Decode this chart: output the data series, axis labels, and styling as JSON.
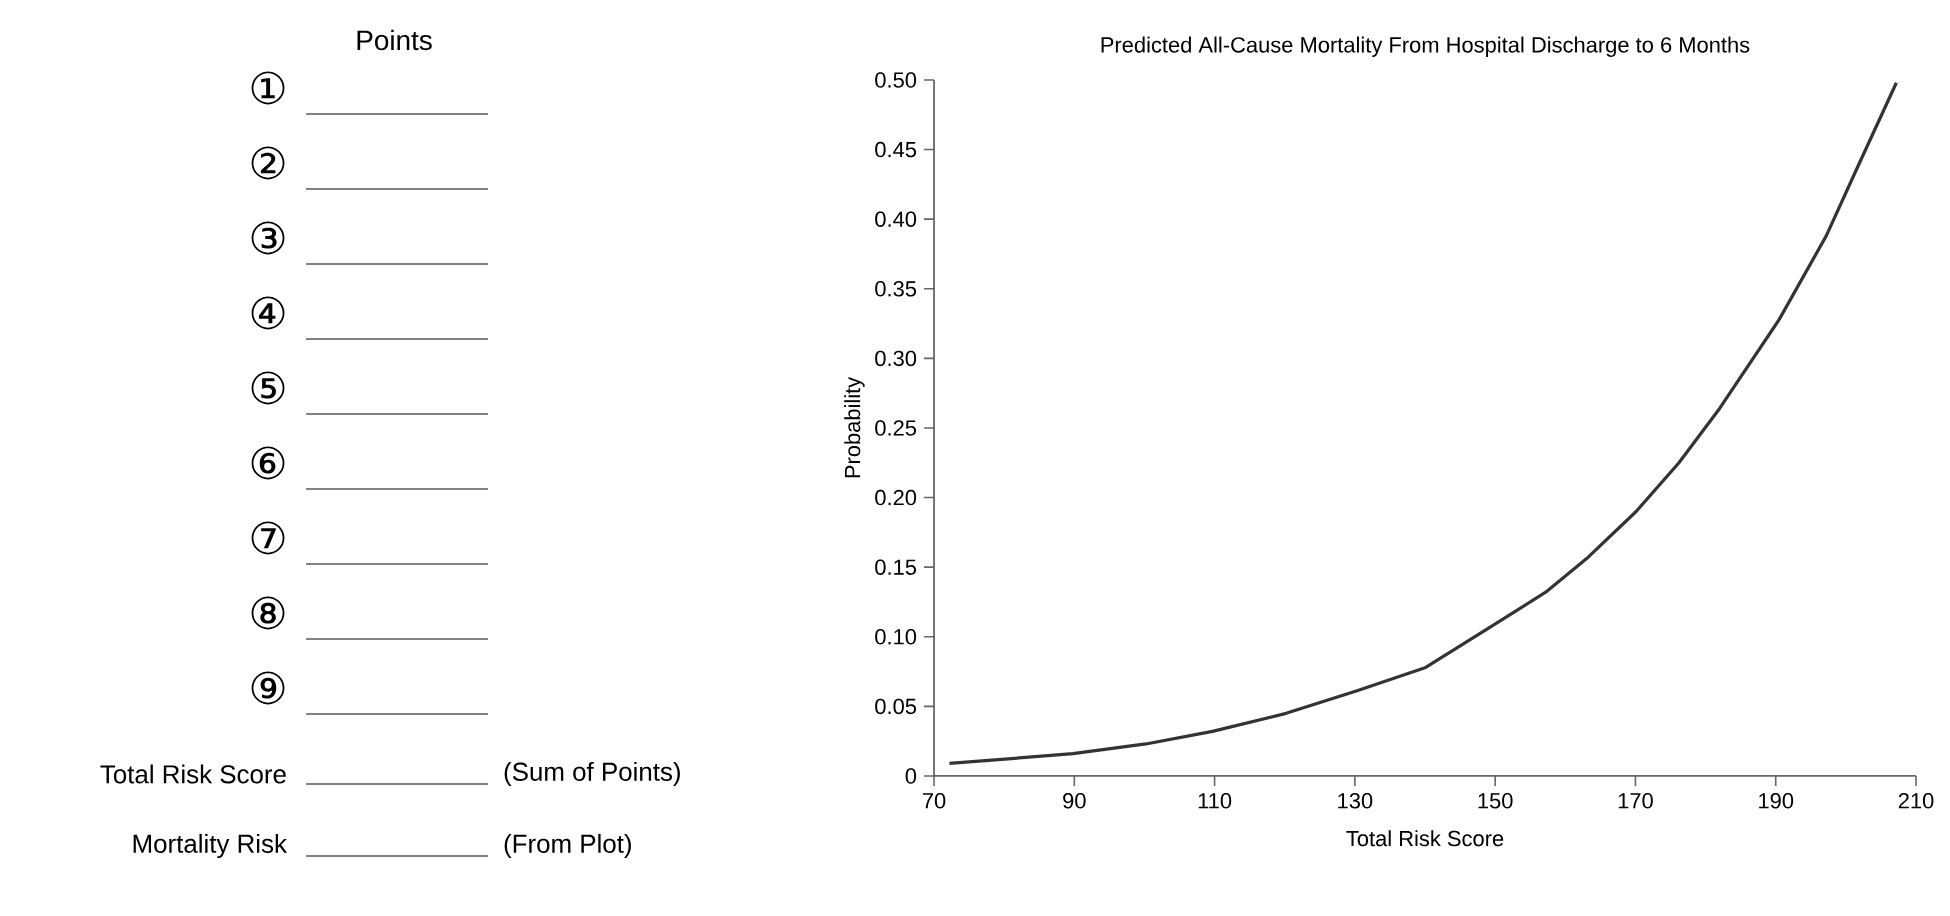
{
  "chart_data": [
    {
      "type": "other",
      "title": "Points",
      "annotations": [
        "①",
        "②",
        "③",
        "④",
        "⑤",
        "⑥",
        "⑦",
        "⑧",
        "⑨",
        "Total Risk Score",
        "(Sum of Points)",
        "Mortality Risk",
        "(From Plot)"
      ]
    },
    {
      "type": "line",
      "title": "Predicted All-Cause Mortality From Hospital Discharge to 6 Months",
      "xlabel": "Total Risk Score",
      "ylabel": "Probability",
      "color": "#333333",
      "x": [
        72.2,
        89.8,
        100.2,
        109.7,
        120.2,
        130.2,
        140.1,
        150.6,
        157.2,
        163,
        170.1,
        176.2,
        182,
        190.5,
        197.2,
        201.9,
        207.2
      ],
      "values": [
        0.009,
        0.016,
        0.023,
        0.032,
        0.045,
        0.061,
        0.078,
        0.111,
        0.132,
        0.156,
        0.19,
        0.225,
        0.264,
        0.328,
        0.388,
        0.44,
        0.498
      ],
      "xlim": [
        70,
        210
      ],
      "ylim": [
        0,
        0.5
      ],
      "xticks": [
        70,
        90,
        110,
        130,
        150,
        170,
        190,
        210
      ],
      "yticks": [
        0,
        0.05,
        {
          "value": 0.1,
          "label": "0.10"
        },
        0.15,
        {
          "value": 0.2,
          "label": "0.20"
        },
        0.25,
        {
          "value": 0.3,
          "label": "0.30"
        },
        0.35,
        {
          "value": 0.4,
          "label": "0.40"
        },
        0.45,
        {
          "value": 0.5,
          "label": "0.50"
        }
      ]
    }
  ]
}
